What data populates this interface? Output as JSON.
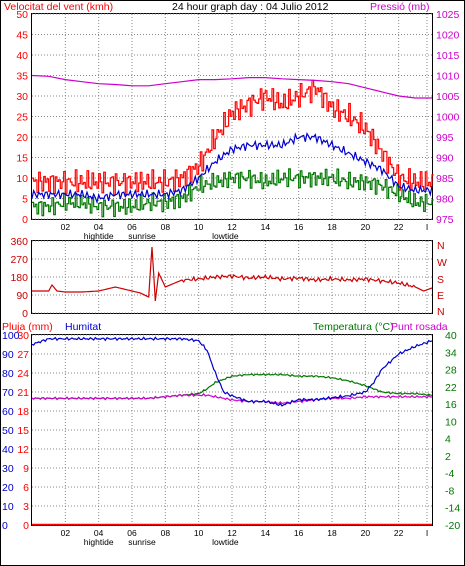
{
  "header": {
    "left_title": "Velocitat del vent (kmh)",
    "center_title": "24 hour graph day : 04 Julio 2012",
    "right_title": "Pressió (mb)"
  },
  "colors": {
    "wind_speed": "#ff0000",
    "wind_avg": "#0000cc",
    "wind_dir_bars": "#007700",
    "pressure": "#cc00cc",
    "wind_direction": "#cc0000",
    "humidity": "#0000cc",
    "temperature": "#007700",
    "dew_point": "#cc00cc",
    "rain": "#ff0000"
  },
  "x_axis": {
    "tick_labels": [
      "02",
      "04",
      "06",
      "08",
      "10",
      "12",
      "14",
      "16",
      "18",
      "20",
      "22",
      "I"
    ],
    "tick_hours": [
      2,
      4,
      6,
      8,
      10,
      12,
      14,
      16,
      18,
      20,
      22,
      23.7
    ],
    "events": [
      {
        "label": "hightide",
        "hour": 4.0
      },
      {
        "label": "sunrise",
        "hour": 6.6
      },
      {
        "label": "lowtide",
        "hour": 11.6
      }
    ]
  },
  "chart_data": [
    {
      "type": "line",
      "title": "",
      "left_axis_label": "Velocitat del vent (kmh)",
      "right_axis_label": "Pressió (mb)",
      "ylim_left": [
        0,
        50
      ],
      "ylim_right": [
        975,
        1025
      ],
      "left_ticks": [
        "0",
        "5",
        "10",
        "15",
        "20",
        "25",
        "30",
        "35",
        "40",
        "45",
        "50"
      ],
      "right_ticks": [
        "975",
        "980",
        "985",
        "990",
        "995",
        "1000",
        "1005",
        "1010",
        "1015",
        "1020",
        "1025"
      ],
      "x": [
        0,
        1,
        2,
        3,
        4,
        5,
        6,
        7,
        8,
        9,
        10,
        11,
        12,
        13,
        14,
        15,
        16,
        17,
        18,
        19,
        20,
        21,
        22,
        23,
        24
      ],
      "series": [
        {
          "key": "gust",
          "axis": "left",
          "values": [
            9,
            9,
            9,
            9,
            9,
            9,
            9,
            9,
            9,
            10,
            13,
            20,
            26,
            28,
            30,
            28,
            30,
            32,
            27,
            25,
            22,
            16,
            10,
            9,
            9
          ]
        },
        {
          "key": "avg",
          "axis": "left",
          "values": [
            6,
            6,
            6,
            6,
            5,
            6,
            6,
            6,
            6,
            7,
            10,
            14,
            17,
            18,
            18,
            18,
            20,
            20,
            18,
            16,
            14,
            12,
            8,
            7,
            7
          ]
        },
        {
          "key": "min",
          "axis": "left",
          "values": [
            3,
            3,
            4,
            4,
            3,
            3,
            3,
            4,
            4,
            5,
            8,
            9,
            10,
            10,
            9,
            10,
            10,
            10,
            10,
            9,
            9,
            8,
            6,
            4,
            4
          ]
        },
        {
          "key": "pressure",
          "axis": "right",
          "values": [
            1010,
            1009.8,
            1009,
            1008.5,
            1008,
            1007.8,
            1007.5,
            1007.5,
            1008,
            1008.5,
            1009,
            1009,
            1009.2,
            1009.5,
            1009.5,
            1009.2,
            1009,
            1008.8,
            1008.5,
            1008,
            1007,
            1006,
            1005,
            1004.5,
            1004.5
          ]
        }
      ]
    },
    {
      "type": "line",
      "title": "",
      "ylim": [
        0,
        360
      ],
      "left_ticks": [
        "0",
        "90",
        "180",
        "270",
        "360"
      ],
      "right_ticks": [
        "N",
        "E",
        "S",
        "W",
        "N"
      ],
      "x": [
        0,
        1,
        1.2,
        1.5,
        2,
        3,
        4,
        5,
        6,
        6.5,
        7,
        7.2,
        7.4,
        7.6,
        8,
        9,
        10,
        11,
        12,
        13,
        14,
        15,
        16,
        17,
        18,
        19,
        20,
        21,
        22,
        23,
        23.5,
        24
      ],
      "series": [
        {
          "key": "direction",
          "values": [
            110,
            110,
            140,
            110,
            105,
            105,
            110,
            130,
            110,
            100,
            80,
            330,
            60,
            200,
            130,
            165,
            170,
            180,
            185,
            175,
            180,
            170,
            175,
            165,
            170,
            165,
            170,
            160,
            150,
            130,
            110,
            125
          ]
        }
      ]
    },
    {
      "type": "line",
      "title": "",
      "left_label_rain": "Pluja (mm)",
      "left_label_humidity": "Humitat",
      "right_label_temp": "Temperatura (°C)",
      "right_label_dew": "Punt rosada",
      "ylim_left": [
        0,
        100
      ],
      "ylim_right": [
        -20,
        40
      ],
      "left_ticks": [
        "0",
        "10",
        "20",
        "30",
        "40",
        "50",
        "60",
        "70",
        "80",
        "90",
        "100"
      ],
      "rain_ticks": [
        "0",
        "3",
        "6",
        "9",
        "12",
        "15",
        "18",
        "21",
        "24",
        "27",
        "30"
      ],
      "right_ticks": [
        "-20",
        "-14",
        "-8",
        "-4",
        "2",
        "4",
        "10",
        "16",
        "22",
        "28",
        "34",
        "40"
      ],
      "x": [
        0,
        1,
        2,
        3,
        4,
        5,
        6,
        7,
        8,
        9,
        10,
        10.5,
        11,
        11.5,
        12,
        13,
        14,
        15,
        16,
        17,
        18,
        19,
        20,
        20.5,
        21,
        22,
        23,
        24
      ],
      "series": [
        {
          "key": "humidity",
          "axis": "left",
          "values": [
            95,
            98,
            98,
            98,
            98,
            98,
            98,
            98,
            98,
            98,
            97,
            92,
            80,
            70,
            68,
            65,
            65,
            63,
            66,
            66,
            67,
            68,
            70,
            75,
            82,
            90,
            94,
            97
          ]
        },
        {
          "key": "temperature",
          "axis": "right",
          "values": [
            20,
            20,
            20,
            20,
            20,
            20,
            20,
            20,
            20.5,
            21,
            21.5,
            23,
            25,
            26,
            27,
            27.5,
            27.5,
            27.5,
            27,
            27,
            26.5,
            25.5,
            24,
            23,
            22,
            21.5,
            21.5,
            21
          ]
        },
        {
          "key": "dew_point",
          "axis": "right",
          "values": [
            20,
            20,
            20,
            20,
            20,
            20,
            20,
            20,
            20.5,
            21,
            21,
            21,
            20.5,
            20,
            19.5,
            19,
            19,
            18.5,
            19,
            19.5,
            20,
            20,
            20.5,
            20.5,
            20.5,
            20.5,
            20.5,
            20.5
          ]
        },
        {
          "key": "rain",
          "axis": "left",
          "values": [
            0,
            0,
            0,
            0,
            0,
            0,
            0,
            0,
            0,
            0,
            0,
            0,
            0,
            0,
            0,
            0,
            0,
            0,
            0,
            0,
            0,
            0,
            0,
            0,
            0,
            0,
            0,
            0
          ]
        }
      ]
    }
  ]
}
